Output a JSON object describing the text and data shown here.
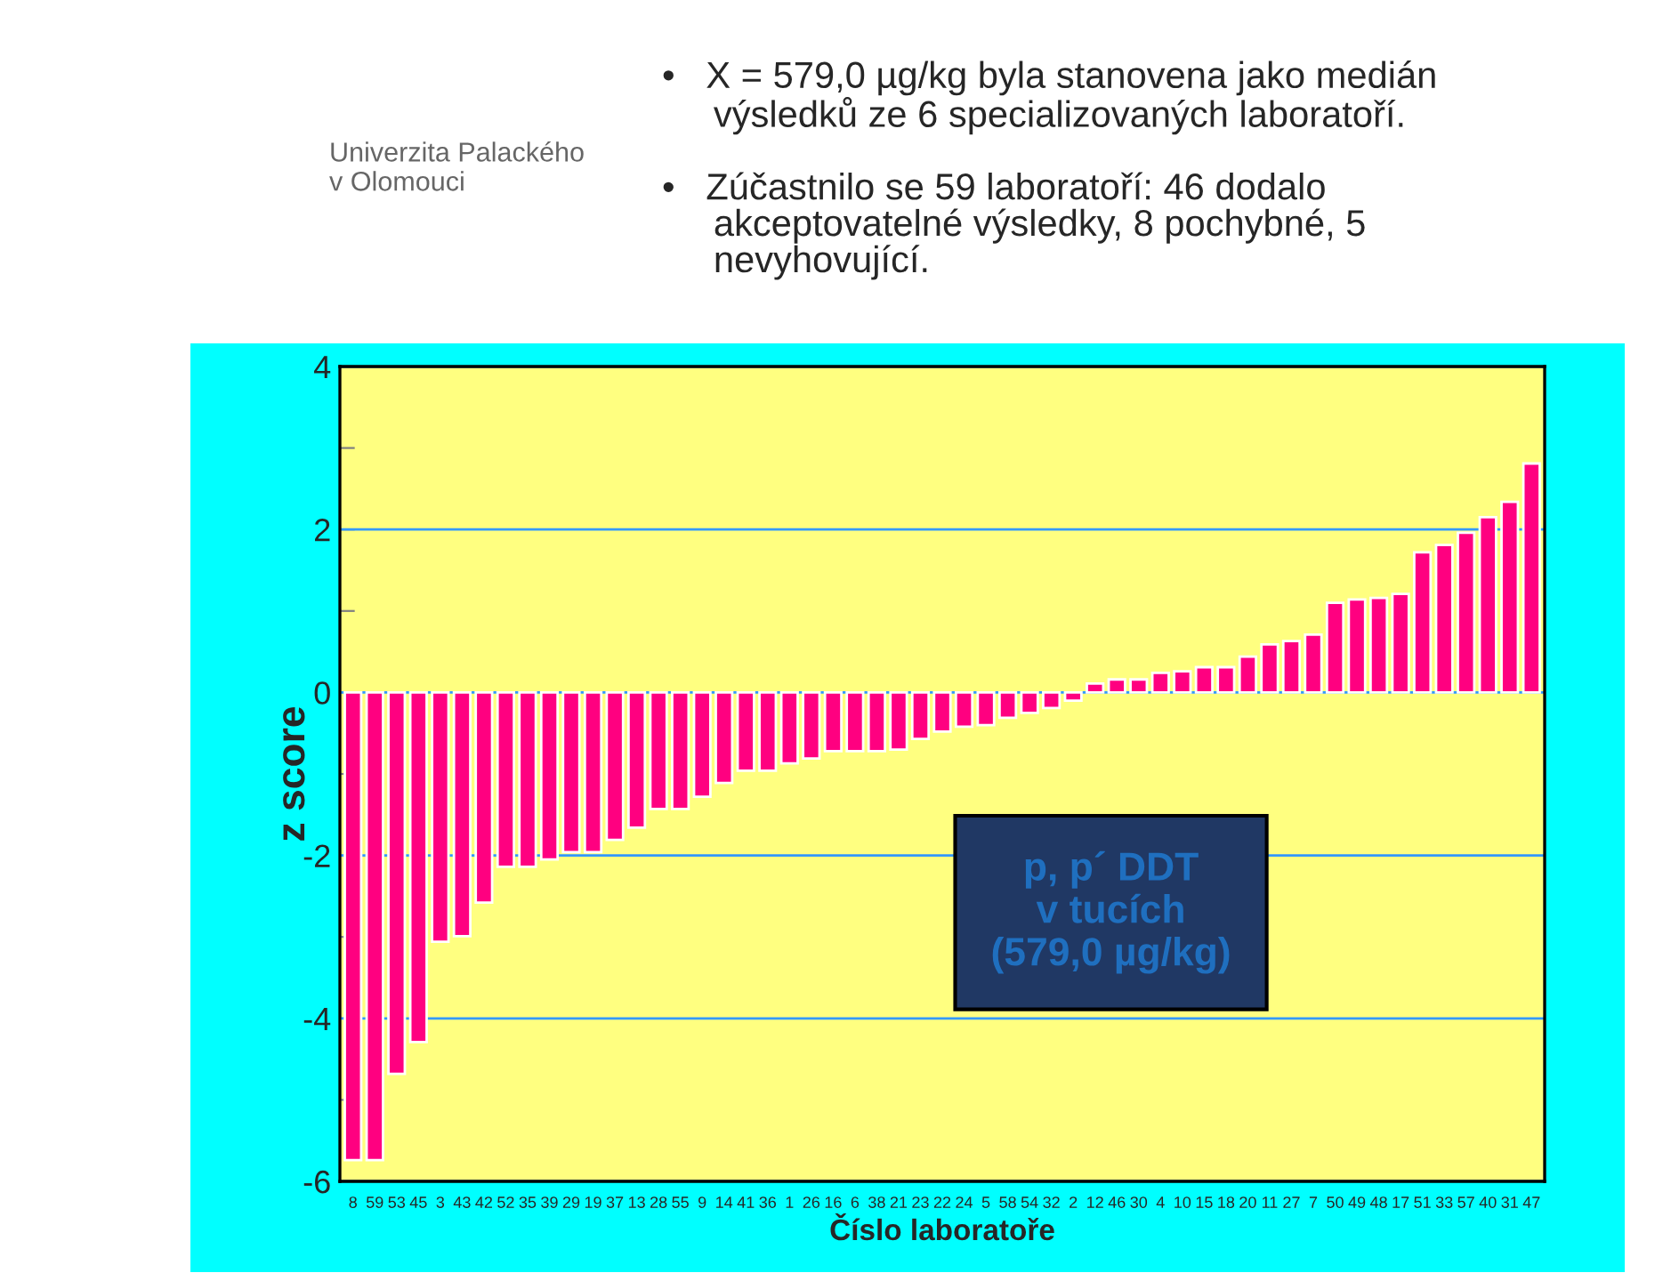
{
  "chart_data": {
    "type": "bar",
    "categories": [
      "8",
      "59",
      "53",
      "45",
      "3",
      "43",
      "42",
      "52",
      "35",
      "39",
      "29",
      "19",
      "37",
      "13",
      "28",
      "55",
      "9",
      "14",
      "41",
      "36",
      "1",
      "26",
      "16",
      "6",
      "38",
      "21",
      "23",
      "22",
      "24",
      "5",
      "58",
      "54",
      "32",
      "2",
      "12",
      "46",
      "30",
      "4",
      "10",
      "15",
      "18",
      "20",
      "11",
      "27",
      "7",
      "50",
      "49",
      "48",
      "17",
      "51",
      "33",
      "57",
      "40",
      "31",
      "47"
    ],
    "values": [
      -5.74,
      -5.74,
      -4.68,
      -4.29,
      -3.06,
      -2.99,
      -2.58,
      -2.14,
      -2.14,
      -2.05,
      -1.96,
      -1.96,
      -1.81,
      -1.66,
      -1.43,
      -1.43,
      -1.28,
      -1.11,
      -0.96,
      -0.96,
      -0.87,
      -0.81,
      -0.72,
      -0.72,
      -0.72,
      -0.7,
      -0.57,
      -0.48,
      -0.42,
      -0.4,
      -0.31,
      -0.25,
      -0.19,
      -0.1,
      0.11,
      0.16,
      0.16,
      0.24,
      0.26,
      0.31,
      0.31,
      0.44,
      0.59,
      0.63,
      0.71,
      1.1,
      1.14,
      1.16,
      1.21,
      1.72,
      1.81,
      1.96,
      2.15,
      2.34,
      2.81
    ],
    "color": "#ff0080",
    "xlabel": "Číslo laboratoře",
    "ylabel": "z score",
    "ylim": [
      -6,
      4
    ],
    "yticks": [
      -6,
      {
        "value": -5,
        "label": null
      },
      -4,
      {
        "value": -3,
        "label": null
      },
      -2,
      {
        "value": -1,
        "label": null
      },
      0,
      {
        "value": 1,
        "label": null
      },
      2,
      {
        "value": 3,
        "label": null
      },
      4
    ],
    "grid": "y",
    "annotations": [
      "Univerzita Palackého\nv Olomouci",
      "•   X = 579,0 µg/kg byla stanovena jako medián\n     výsledků ze 6 specializovaných laboratoří.",
      "•   Zúčastnilo se 59 laboratoří: 46 dodalo\n     akceptovatelné výsledky, 8 pochybné, 5\n     nevyhovující.",
      "p, p´ DDT\nv tucích\n(579,0 µg/kg)"
    ]
  }
}
